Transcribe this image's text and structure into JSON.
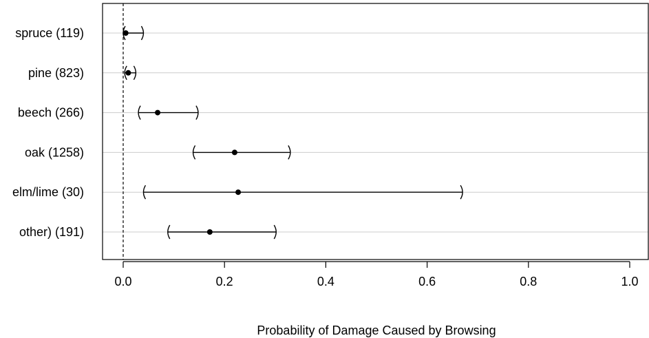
{
  "chart_data": {
    "type": "dot-interval",
    "title": "",
    "xlabel": "Probability of Damage Caused by Browsing",
    "ylabel": "",
    "xlim": [
      -0.05,
      1.0
    ],
    "xticks": [
      0.0,
      0.2,
      0.4,
      0.6,
      0.8,
      1.0
    ],
    "xtick_labels": [
      "0.0",
      "0.2",
      "0.4",
      "0.6",
      "0.8",
      "1.0"
    ],
    "reference_line": {
      "x": 0.0,
      "style": "dashed"
    },
    "grid": "horizontal lines at each category",
    "categories": [
      {
        "label": "spruce (119)",
        "estimate": 0.005,
        "lower": 0.0,
        "upper": 0.04
      },
      {
        "label": "pine (823)",
        "estimate": 0.01,
        "lower": 0.003,
        "upper": 0.025
      },
      {
        "label": "beech (266)",
        "estimate": 0.068,
        "lower": 0.03,
        "upper": 0.148
      },
      {
        "label": "oak (1258)",
        "estimate": 0.22,
        "lower": 0.138,
        "upper": 0.33
      },
      {
        "label": "elm/lime (30)",
        "estimate": 0.227,
        "lower": 0.04,
        "upper": 0.67
      },
      {
        "label": "other) (191)",
        "estimate": 0.171,
        "lower": 0.088,
        "upper": 0.302
      }
    ]
  }
}
